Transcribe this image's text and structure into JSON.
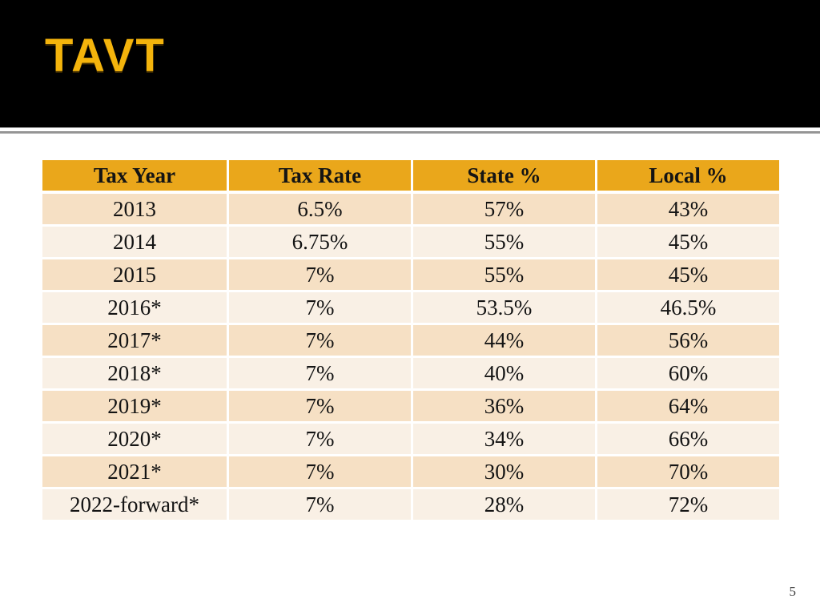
{
  "slide": {
    "title": "TAVT",
    "page_number": "5"
  },
  "table": {
    "headers": [
      "Tax Year",
      "Tax Rate",
      "State %",
      "Local %"
    ],
    "rows": [
      [
        "2013",
        "6.5%",
        "57%",
        "43%"
      ],
      [
        "2014",
        "6.75%",
        "55%",
        "45%"
      ],
      [
        "2015",
        "7%",
        "55%",
        "45%"
      ],
      [
        "2016*",
        "7%",
        "53.5%",
        "46.5%"
      ],
      [
        "2017*",
        "7%",
        "44%",
        "56%"
      ],
      [
        "2018*",
        "7%",
        "40%",
        "60%"
      ],
      [
        "2019*",
        "7%",
        "36%",
        "64%"
      ],
      [
        "2020*",
        "7%",
        "34%",
        "66%"
      ],
      [
        "2021*",
        "7%",
        "30%",
        "70%"
      ],
      [
        "2022-forward*",
        "7%",
        "28%",
        "72%"
      ]
    ]
  },
  "colors": {
    "title_gold": "#F4B40C",
    "header_bg": "#EAA71B",
    "row_band_dark": "#F6E0C4",
    "row_band_light": "#F9F0E5",
    "top_band": "#000000",
    "divider_gray": "#8C8C8C"
  }
}
